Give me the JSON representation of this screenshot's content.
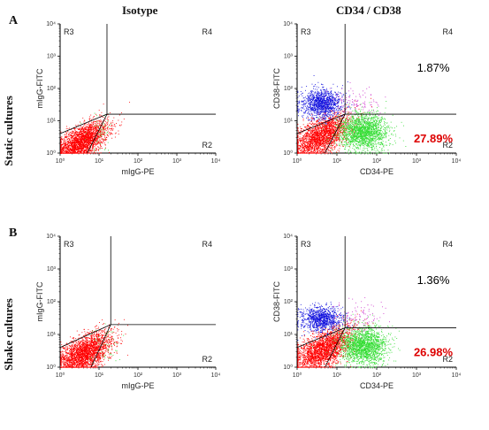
{
  "column_headers": [
    "Isotype",
    "CD34 / CD38"
  ],
  "row_panels": [
    {
      "letter": "A",
      "label": "Static cultures"
    },
    {
      "letter": "B",
      "label": "Shake cultures"
    }
  ],
  "colors": {
    "red": "#ff0000",
    "green": "#33dd33",
    "blue": "#1010dd",
    "magenta": "#cc33cc",
    "accent_pct": "#dd0000",
    "gate": "#000000"
  },
  "chart_data": [
    {
      "type": "scatter",
      "panel": "A",
      "column": "Isotype",
      "xlabel": "mIgG-PE",
      "ylabel": "mIgG-FITC",
      "xscale": "log",
      "yscale": "log",
      "xlim": [
        1,
        10000
      ],
      "ylim": [
        1,
        10000
      ],
      "tick_labels": [
        "10⁰",
        "10¹",
        "10²",
        "10³",
        "10⁴"
      ],
      "quadrant_gate": {
        "x": 16,
        "y": 16
      },
      "regions": [
        "R3",
        "R4",
        "R2"
      ],
      "populations": [
        {
          "color": "red",
          "n": 2600,
          "cx": 3.5,
          "cy": 2.3,
          "sx": 0.34,
          "sy": 0.25
        },
        {
          "color": "green",
          "n": 45,
          "cx": 12,
          "cy": 5,
          "sx": 0.2,
          "sy": 0.3
        }
      ],
      "annotations": []
    },
    {
      "type": "scatter",
      "panel": "A",
      "column": "CD34 / CD38",
      "xlabel": "CD34-PE",
      "ylabel": "CD38-FITC",
      "xscale": "log",
      "yscale": "log",
      "xlim": [
        1,
        10000
      ],
      "ylim": [
        1,
        10000
      ],
      "tick_labels": [
        "10⁰",
        "10¹",
        "10²",
        "10³",
        "10⁴"
      ],
      "quadrant_gate": {
        "x": 16,
        "y": 16
      },
      "regions": [
        "R3",
        "R4",
        "R2"
      ],
      "populations": [
        {
          "color": "red",
          "n": 2400,
          "cx": 4,
          "cy": 3.5,
          "sx": 0.36,
          "sy": 0.28
        },
        {
          "color": "blue",
          "n": 1200,
          "cx": 4,
          "cy": 35,
          "sx": 0.25,
          "sy": 0.22
        },
        {
          "color": "green",
          "n": 1900,
          "cx": 45,
          "cy": 4.5,
          "sx": 0.3,
          "sy": 0.28
        },
        {
          "color": "magenta",
          "n": 120,
          "cx": 28,
          "cy": 40,
          "sx": 0.3,
          "sy": 0.25
        }
      ],
      "annotations": [
        {
          "text": "1.87%",
          "region": "R4",
          "color": "black"
        },
        {
          "text": "27.89%",
          "region": "R2",
          "color": "red"
        }
      ]
    },
    {
      "type": "scatter",
      "panel": "B",
      "column": "Isotype",
      "xlabel": "mIgG-PE",
      "ylabel": "mIgG-FITC",
      "xscale": "log",
      "yscale": "log",
      "xlim": [
        1,
        10000
      ],
      "ylim": [
        1,
        10000
      ],
      "tick_labels": [
        "10⁰",
        "10¹",
        "10²",
        "10³",
        "10⁴"
      ],
      "quadrant_gate": {
        "x": 20,
        "y": 20
      },
      "regions": [
        "R3",
        "R4",
        "R2"
      ],
      "populations": [
        {
          "color": "red",
          "n": 2700,
          "cx": 4,
          "cy": 2.6,
          "sx": 0.35,
          "sy": 0.27
        },
        {
          "color": "green",
          "n": 45,
          "cx": 15,
          "cy": 5,
          "sx": 0.2,
          "sy": 0.3
        }
      ],
      "annotations": []
    },
    {
      "type": "scatter",
      "panel": "B",
      "column": "CD34 / CD38",
      "xlabel": "CD34-PE",
      "ylabel": "CD38-FITC",
      "xscale": "log",
      "yscale": "log",
      "xlim": [
        1,
        10000
      ],
      "ylim": [
        1,
        10000
      ],
      "tick_labels": [
        "10⁰",
        "10¹",
        "10²",
        "10³",
        "10⁴"
      ],
      "quadrant_gate": {
        "x": 16,
        "y": 16
      },
      "regions": [
        "R3",
        "R4",
        "R2"
      ],
      "populations": [
        {
          "color": "red",
          "n": 2500,
          "cx": 4.5,
          "cy": 3.5,
          "sx": 0.36,
          "sy": 0.28
        },
        {
          "color": "blue",
          "n": 1000,
          "cx": 4,
          "cy": 30,
          "sx": 0.25,
          "sy": 0.2
        },
        {
          "color": "green",
          "n": 1900,
          "cx": 45,
          "cy": 4.5,
          "sx": 0.3,
          "sy": 0.28
        },
        {
          "color": "magenta",
          "n": 110,
          "cx": 28,
          "cy": 35,
          "sx": 0.3,
          "sy": 0.22
        }
      ],
      "annotations": [
        {
          "text": "1.36%",
          "region": "R4",
          "color": "black"
        },
        {
          "text": "26.98%",
          "region": "R2",
          "color": "red"
        }
      ]
    }
  ]
}
